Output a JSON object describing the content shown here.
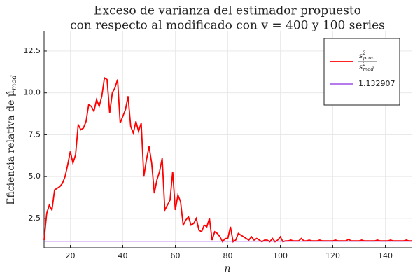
{
  "chart_data": {
    "type": "line",
    "title": [
      "Exceso de varianza del estimador propuesto",
      "con respecto al modificado con v = 400 y 100 series"
    ],
    "xlabel": "n",
    "ylabel": "Eficiencia relativa de μ̂",
    "ylabel_sub": "mod",
    "x": [
      10,
      11,
      12,
      13,
      14,
      15,
      16,
      17,
      18,
      19,
      20,
      21,
      22,
      23,
      24,
      25,
      26,
      27,
      28,
      29,
      30,
      31,
      32,
      33,
      34,
      35,
      36,
      37,
      38,
      39,
      40,
      41,
      42,
      43,
      44,
      45,
      46,
      47,
      48,
      49,
      50,
      51,
      52,
      53,
      54,
      55,
      56,
      57,
      58,
      59,
      60,
      61,
      62,
      63,
      64,
      65,
      66,
      67,
      68,
      69,
      70,
      71,
      72,
      73,
      74,
      75,
      76,
      77,
      78,
      79,
      80,
      81,
      82,
      83,
      84,
      85,
      86,
      87,
      88,
      89,
      90,
      91,
      92,
      93,
      94,
      95,
      96,
      97,
      98,
      99,
      100,
      101,
      102,
      103,
      104,
      105,
      106,
      107,
      108,
      109,
      110,
      111,
      112,
      113,
      114,
      115,
      116,
      117,
      118,
      119,
      120,
      121,
      122,
      123,
      124,
      125,
      126,
      127,
      128,
      129,
      130,
      131,
      132,
      133,
      134,
      135,
      136,
      137,
      138,
      139,
      140,
      141,
      142,
      143,
      144,
      145,
      146,
      147,
      148,
      149,
      150
    ],
    "series": [
      {
        "name": {
          "num": "s",
          "num_sup": "2",
          "num_sub": "prop",
          "den": "s",
          "den_sup": "2",
          "den_sub": "mod"
        },
        "color": "#ff0000",
        "values": [
          1.2,
          2.8,
          3.3,
          3.0,
          4.2,
          4.3,
          4.4,
          4.6,
          5.0,
          5.7,
          6.5,
          5.8,
          6.3,
          8.1,
          7.8,
          7.9,
          8.3,
          9.3,
          9.2,
          8.9,
          9.6,
          9.2,
          9.8,
          10.9,
          10.8,
          8.8,
          10.0,
          10.3,
          10.8,
          8.2,
          8.6,
          9.0,
          9.8,
          8.0,
          7.6,
          8.3,
          7.7,
          8.2,
          5.0,
          6.0,
          6.8,
          5.8,
          4.0,
          4.8,
          5.3,
          6.1,
          3.0,
          3.3,
          3.6,
          5.3,
          3.0,
          3.9,
          3.5,
          2.1,
          2.4,
          2.6,
          2.1,
          2.2,
          2.5,
          1.8,
          1.7,
          2.1,
          2.0,
          2.5,
          1.2,
          1.7,
          1.6,
          1.4,
          1.1,
          1.3,
          1.3,
          2.0,
          1.1,
          1.2,
          1.6,
          1.5,
          1.4,
          1.3,
          1.2,
          1.4,
          1.2,
          1.3,
          1.2,
          1.1,
          1.2,
          1.2,
          1.1,
          1.3,
          1.1,
          1.2,
          1.4,
          1.1,
          1.15,
          1.15,
          1.2,
          1.15,
          1.15,
          1.15,
          1.3,
          1.15,
          1.15,
          1.2,
          1.15,
          1.15,
          1.15,
          1.2,
          1.15,
          1.15,
          1.15,
          1.15,
          1.15,
          1.2,
          1.15,
          1.15,
          1.15,
          1.15,
          1.25,
          1.15,
          1.15,
          1.15,
          1.15,
          1.2,
          1.15,
          1.15,
          1.15,
          1.15,
          1.15,
          1.2,
          1.15,
          1.15,
          1.15,
          1.15,
          1.2,
          1.15,
          1.15,
          1.15,
          1.15,
          1.15,
          1.2,
          1.15,
          1.15
        ]
      }
    ],
    "hline": {
      "name": "1.132907",
      "value": 1.132907,
      "color": "#8a2be2"
    },
    "xlim": [
      10,
      150
    ],
    "xticks": [
      20,
      40,
      60,
      80,
      100,
      120,
      140
    ],
    "ylim": [
      0.74,
      13.67
    ],
    "yticks": [
      2.5,
      {
        "value": 5,
        "label": "5.0"
      },
      7.5,
      {
        "value": 10,
        "label": "10.0"
      },
      12.5
    ],
    "grid": true,
    "legend": "top-right"
  }
}
